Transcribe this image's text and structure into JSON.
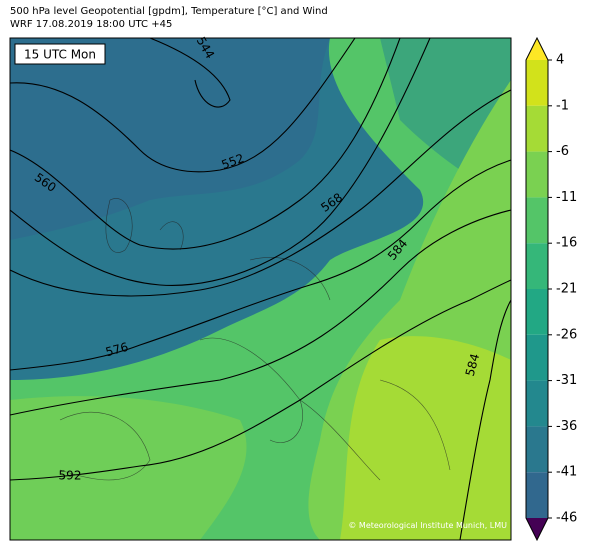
{
  "header": {
    "title_line1": "500 hPa level Geopotential [gpdm], Temperature [°C] and Wind",
    "title_line2": "WRF 17.08.2019 18:00 UTC +45"
  },
  "map": {
    "time_label": "15 UTC Mon",
    "contour_labels": [
      "544",
      "552",
      "560",
      "568",
      "584",
      "576",
      "584",
      "592"
    ],
    "copyright": "© Meteorological Institute Munich, LMU"
  },
  "colorbar": {
    "ticks": [
      4,
      -1,
      -6,
      -11,
      -16,
      -21,
      -26,
      -31,
      -36,
      -41,
      -46
    ],
    "colors": [
      "#fde725",
      "#d2e21b",
      "#a5db36",
      "#7ad151",
      "#54c568",
      "#35b779",
      "#22a884",
      "#1f988b",
      "#23888e",
      "#2a788e",
      "#31688e",
      "#440154"
    ]
  }
}
